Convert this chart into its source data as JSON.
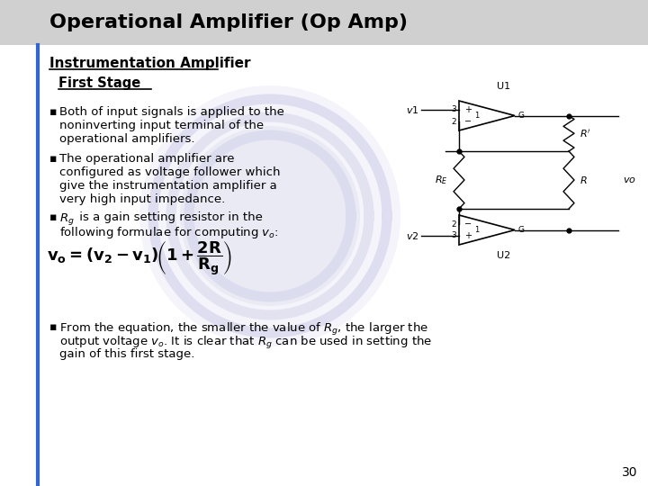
{
  "title": "Operational Amplifier (Op Amp)",
  "subtitle": "Instrumentation Amplifier",
  "subtitle2": "First Stage",
  "bullet1_line1": "Both of input signals is applied to the",
  "bullet1_line2": "noninverting input terminal of the",
  "bullet1_line3": "operational amplifiers.",
  "bullet2_line1": "The operational amplifier are",
  "bullet2_line2": "configured as voltage follower which",
  "bullet2_line3": "give the instrumentation amplifier a",
  "bullet2_line4": "very high input impedance.",
  "bullet3_line1": " is a gain setting resistor in the",
  "bullet3_line2": "following formulae for computing ",
  "bullet4_line1": "From the equation, the smaller the value of",
  "bullet4_line2": "output voltage",
  "bullet4_line3": "gain of this first stage.",
  "page_number": "30",
  "bg_color": "#ffffff",
  "title_bg": "#d0d0d0",
  "accent_color": "#3366cc",
  "text_color": "#000000"
}
